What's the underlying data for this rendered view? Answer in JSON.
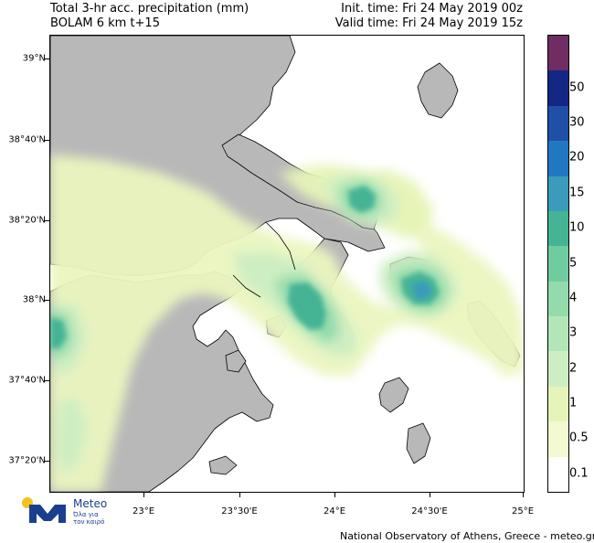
{
  "header": {
    "title_line1": "Total 3-hr acc. precipitation (mm)",
    "title_line2": "BOLAM 6 km t+15",
    "init_time": "Init. time: Fri 24 May 2019 00z",
    "valid_time": "Valid time: Fri 24 May 2019 15z"
  },
  "map": {
    "lat_labels": [
      "39°N",
      "38°40'N",
      "38°20'N",
      "38°N",
      "37°40'N",
      "37°20'N"
    ],
    "lon_labels": [
      "23°E",
      "23°30'E",
      "24°E",
      "24°30'E",
      "25°E"
    ],
    "land_color": "#b8b8b8",
    "sea_color": "#ffffff"
  },
  "legend": {
    "levels": [
      "0.1",
      "0.5",
      "1",
      "2",
      "3",
      "4",
      "5",
      "10",
      "15",
      "20",
      "30",
      "50"
    ],
    "colors": [
      "#ffffff",
      "#f3f9d1",
      "#e5f4b8",
      "#cdeec2",
      "#b2e6b8",
      "#93dbac",
      "#6fcc9f",
      "#45b494",
      "#3a9bbb",
      "#2277c3",
      "#1f4fa6",
      "#152785",
      "#6f2d63"
    ]
  },
  "logo": {
    "name": "Meteo",
    "tagline": "Όλα για τον καιρό"
  },
  "footer": {
    "credit": "National Observatory of Athens, Greece - meteo.gr"
  }
}
